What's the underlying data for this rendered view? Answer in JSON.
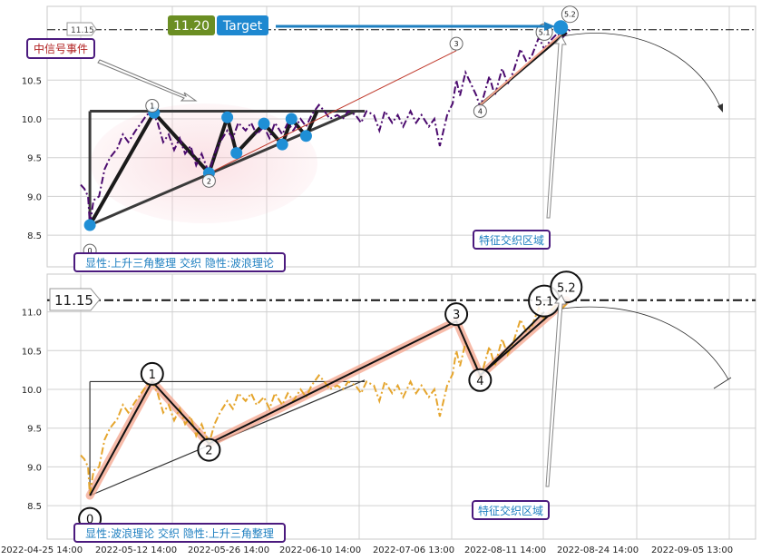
{
  "chart_data": [
    {
      "type": "line",
      "panel": "top",
      "ylim": [
        8.2,
        11.5
      ],
      "yticks": [
        "8.5",
        "9.0",
        "9.5",
        "10.0",
        "10.5"
      ],
      "reference_line": {
        "value": 11.15,
        "label": "11.15"
      },
      "badges": {
        "price": "11.20",
        "target": "Target"
      },
      "annotations": {
        "event": "中信号事件",
        "zone": "特征交织区域",
        "pattern": "显性:上升三角整理 交织 隐性:波浪理论"
      },
      "wave_labels": [
        {
          "label": "0",
          "x": 0.5,
          "y": 8.3
        },
        {
          "label": "1",
          "x": 3.9,
          "y": 10.17
        },
        {
          "label": "2",
          "x": 7.0,
          "y": 9.2
        },
        {
          "label": "3",
          "x": 20.5,
          "y": 10.97
        },
        {
          "label": "4",
          "x": 21.8,
          "y": 10.1
        },
        {
          "label": "5.1",
          "x": 25.3,
          "y": 11.12
        },
        {
          "label": "5.2",
          "x": 26.7,
          "y": 11.35
        }
      ],
      "triangle_points": [
        {
          "x": 0.5,
          "y": 8.63
        },
        {
          "x": 4.0,
          "y": 10.08
        },
        {
          "x": 7.0,
          "y": 9.3
        },
        {
          "x": 8.0,
          "y": 10.02
        },
        {
          "x": 8.5,
          "y": 9.56
        },
        {
          "x": 10.0,
          "y": 9.94
        },
        {
          "x": 11.0,
          "y": 9.67
        },
        {
          "x": 11.5,
          "y": 10.0
        },
        {
          "x": 12.3,
          "y": 9.78
        }
      ],
      "series": [
        {
          "style": "dashdot",
          "x": [
            0,
            0.2,
            0.4,
            0.5,
            0.7,
            1,
            1.3,
            1.6,
            2,
            2.3,
            2.6,
            3,
            3.3,
            3.6,
            3.9,
            4.2,
            4.5,
            4.8,
            5.1,
            5.4,
            5.7,
            6,
            6.3,
            6.6,
            7,
            7.3,
            7.6,
            8,
            8.3,
            8.6,
            9,
            9.3,
            9.6,
            10,
            10.3,
            10.6,
            11,
            11.3,
            11.6,
            12,
            12.3,
            12.6,
            13,
            13.3,
            13.6,
            14,
            14.3,
            14.6,
            15,
            15.3,
            15.6,
            16,
            16.3,
            16.6,
            17,
            17.3,
            17.6,
            18,
            18.3,
            18.6,
            19,
            19.3,
            19.6,
            20,
            20.3,
            20.5,
            20.7,
            21,
            21.3,
            21.6,
            21.8,
            22,
            22.3,
            22.6,
            23,
            23.3,
            23.6,
            24,
            24.3,
            24.6,
            25,
            25.3,
            25.6,
            26,
            26.3,
            26.7
          ],
          "y": [
            9.15,
            9.1,
            9.0,
            8.63,
            8.95,
            9.0,
            9.35,
            9.5,
            9.62,
            9.8,
            9.7,
            9.85,
            9.95,
            10.05,
            10.1,
            9.95,
            9.7,
            9.8,
            9.6,
            9.75,
            9.55,
            9.65,
            9.4,
            9.55,
            9.3,
            9.55,
            9.7,
            9.85,
            9.75,
            9.95,
            9.85,
            9.95,
            9.8,
            9.9,
            9.75,
            9.95,
            9.8,
            9.95,
            9.85,
            10.0,
            9.9,
            10.05,
            10.18,
            10.1,
            10.0,
            10.05,
            10.0,
            10.1,
            10.05,
            9.95,
            10.1,
            10.05,
            9.85,
            10.1,
            9.95,
            10.05,
            9.9,
            10.1,
            9.95,
            10.05,
            9.9,
            10.0,
            9.65,
            10.05,
            10.2,
            10.5,
            10.3,
            10.6,
            10.45,
            10.3,
            10.15,
            10.3,
            10.55,
            10.3,
            10.65,
            10.45,
            10.6,
            10.9,
            10.75,
            10.8,
            11.05,
            10.9,
            11.0,
            11.1,
            11.05,
            11.15
          ]
        }
      ]
    },
    {
      "type": "line",
      "panel": "bottom",
      "ylim": [
        8.2,
        11.5
      ],
      "yticks": [
        "8.5",
        "9.0",
        "9.5",
        "10.0",
        "10.5",
        "11.0"
      ],
      "reference_line": {
        "value": 11.15,
        "label": "11.15"
      },
      "annotations": {
        "zone": "特征交织区域",
        "pattern": "显性:波浪理论 交织 隐性:上升三角整理"
      },
      "xticks": [
        "2022-04-25 14:00",
        "2022-05-12 14:00",
        "2022-05-26 14:00",
        "2022-06-10 14:00",
        "2022-07-06 13:00",
        "2022-08-11 14:00",
        "2022-08-24 14:00",
        "2022-09-05 13:00"
      ],
      "wave_labels": [
        {
          "label": "0",
          "x": 0.5,
          "y": 8.33
        },
        {
          "label": "1",
          "x": 3.9,
          "y": 10.2
        },
        {
          "label": "2",
          "x": 7.0,
          "y": 9.22
        },
        {
          "label": "3",
          "x": 20.5,
          "y": 10.97
        },
        {
          "label": "4",
          "x": 21.8,
          "y": 10.12
        },
        {
          "label": "5.1",
          "x": 25.3,
          "y": 11.14
        },
        {
          "label": "5.2",
          "x": 26.5,
          "y": 11.32
        }
      ],
      "wave_path": [
        {
          "x": 0.5,
          "y": 8.63
        },
        {
          "x": 3.9,
          "y": 10.1
        },
        {
          "x": 7.0,
          "y": 9.3
        },
        {
          "x": 20.5,
          "y": 10.88
        },
        {
          "x": 21.8,
          "y": 10.18
        },
        {
          "x": 26.5,
          "y": 11.15
        }
      ],
      "series": [
        {
          "style": "dashdot",
          "x": [
            0,
            0.2,
            0.4,
            0.5,
            0.7,
            1,
            1.3,
            1.6,
            2,
            2.3,
            2.6,
            3,
            3.3,
            3.6,
            3.9,
            4.2,
            4.5,
            4.8,
            5.1,
            5.4,
            5.7,
            6,
            6.3,
            6.6,
            7,
            7.3,
            7.6,
            8,
            8.3,
            8.6,
            9,
            9.3,
            9.6,
            10,
            10.3,
            10.6,
            11,
            11.3,
            11.6,
            12,
            12.3,
            12.6,
            13,
            13.3,
            13.6,
            14,
            14.3,
            14.6,
            15,
            15.3,
            15.6,
            16,
            16.3,
            16.6,
            17,
            17.3,
            17.6,
            18,
            18.3,
            18.6,
            19,
            19.3,
            19.6,
            20,
            20.3,
            20.5,
            20.7,
            21,
            21.3,
            21.6,
            21.8,
            22,
            22.3,
            22.6,
            23,
            23.3,
            23.6,
            24,
            24.3,
            24.6,
            25,
            25.3,
            25.6,
            26,
            26.3,
            26.7
          ],
          "y": [
            9.15,
            9.1,
            9.0,
            8.63,
            8.95,
            9.0,
            9.35,
            9.5,
            9.62,
            9.8,
            9.7,
            9.85,
            9.95,
            10.05,
            10.1,
            9.95,
            9.7,
            9.8,
            9.6,
            9.75,
            9.55,
            9.65,
            9.4,
            9.55,
            9.3,
            9.55,
            9.7,
            9.85,
            9.75,
            9.95,
            9.85,
            9.95,
            9.8,
            9.9,
            9.75,
            9.95,
            9.8,
            9.95,
            9.85,
            10.0,
            9.9,
            10.05,
            10.18,
            10.1,
            10.0,
            10.05,
            10.0,
            10.1,
            10.05,
            9.95,
            10.1,
            10.05,
            9.85,
            10.1,
            9.95,
            10.05,
            9.9,
            10.1,
            9.95,
            10.05,
            9.9,
            10.0,
            9.65,
            10.05,
            10.2,
            10.5,
            10.3,
            10.6,
            10.45,
            10.3,
            10.15,
            10.3,
            10.55,
            10.3,
            10.65,
            10.45,
            10.6,
            10.9,
            10.75,
            10.8,
            11.05,
            10.9,
            11.0,
            11.1,
            11.05,
            11.15
          ]
        }
      ]
    }
  ],
  "colors": {
    "top_line": "#4b0a6e",
    "bottom_line": "#e5a52d",
    "marker": "#1f8fd6",
    "price_badge": "#6b8e23",
    "target_badge": "#1e88d0",
    "label_border": "#4b1a7e",
    "event_text": "#b22222",
    "zone_text": "#1e7fc0",
    "wave_glow": "#f4a48c"
  }
}
